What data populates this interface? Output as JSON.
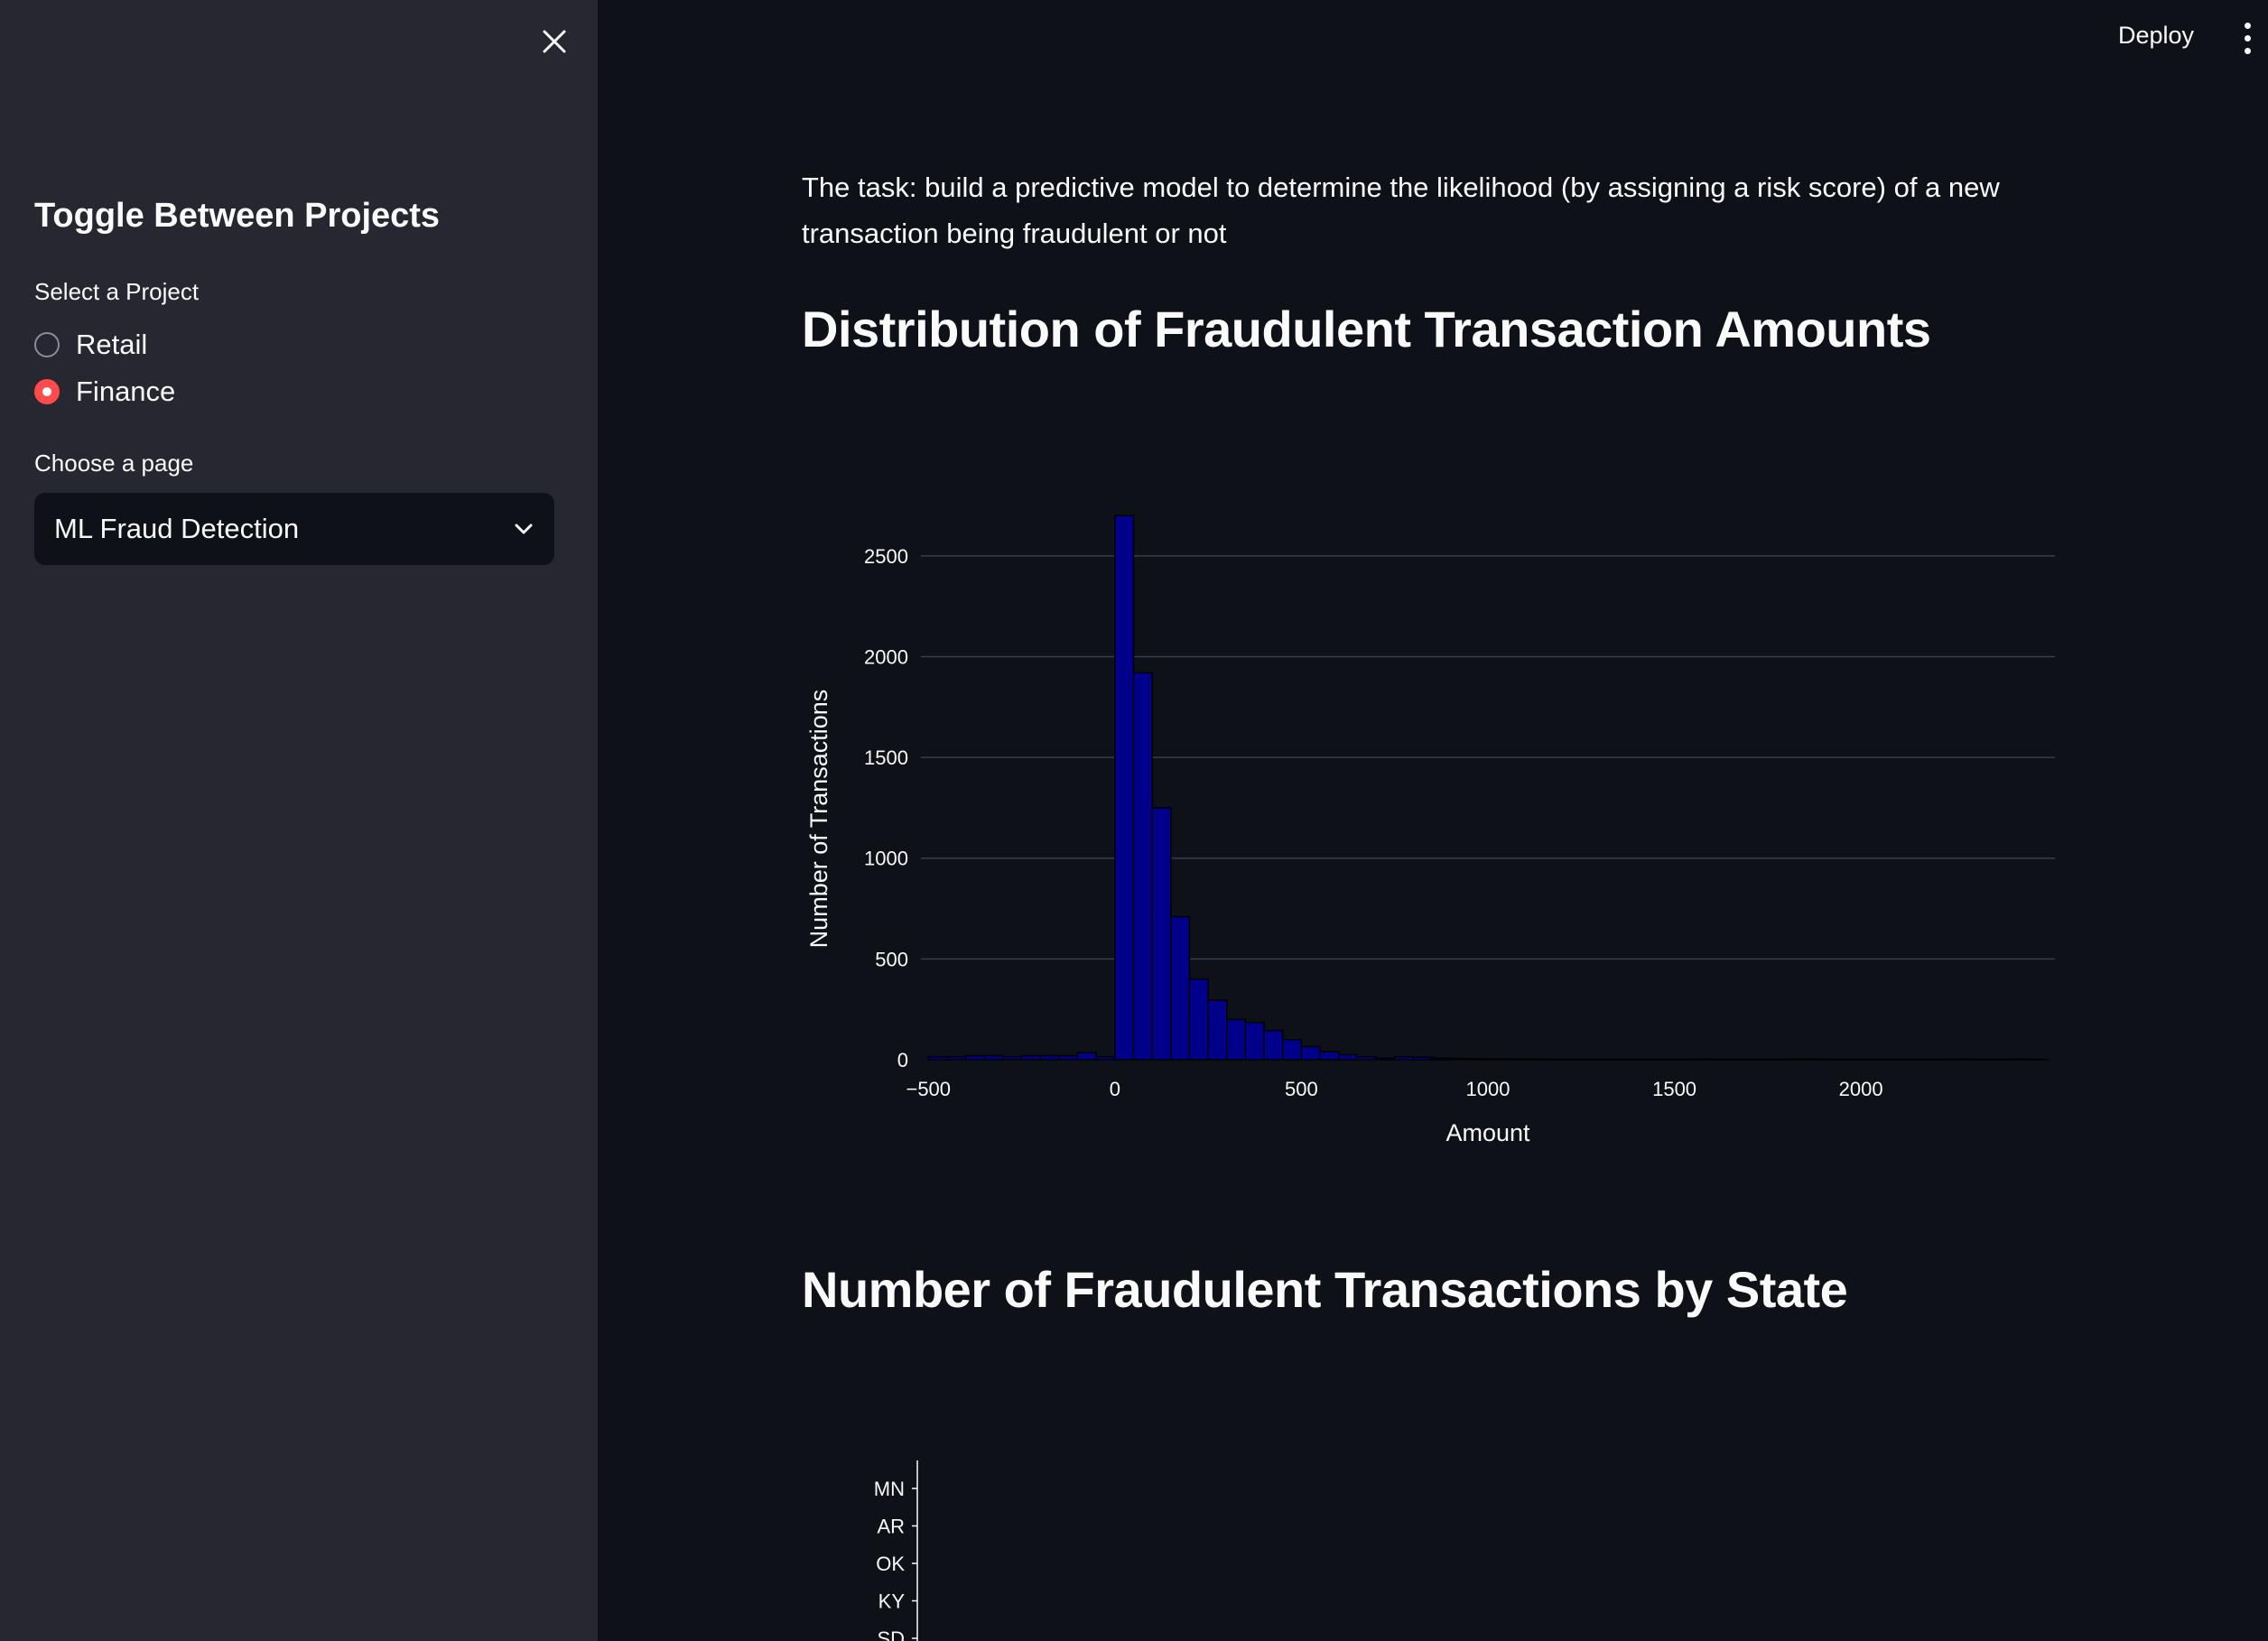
{
  "sidebar": {
    "title": "Toggle Between Projects",
    "project_label": "Select a Project",
    "projects": [
      {
        "label": "Retail",
        "checked": false
      },
      {
        "label": "Finance",
        "checked": true
      }
    ],
    "page_label": "Choose a page",
    "page_selected": "ML Fraud Detection"
  },
  "header": {
    "deploy_label": "Deploy"
  },
  "main": {
    "description": "The task: build a predictive model to determine the likelihood (by assigning a risk score) of a new transaction being fraudulent or not",
    "heading1": "Distribution of Fraudulent Transaction Amounts",
    "heading2": "Number of Fraudulent Transactions by State"
  },
  "colors": {
    "bar_fill": "#00008b",
    "bar_stroke": "#000000",
    "accent": "#ff4b4b"
  },
  "chart_data": [
    {
      "type": "bar",
      "title": "",
      "xlabel": "Amount",
      "ylabel": "Number of Transactions",
      "xlim": [
        -520,
        2520
      ],
      "ylim": [
        0,
        2750
      ],
      "x_ticks": [
        -500,
        0,
        500,
        1000,
        1500,
        2000
      ],
      "x_tick_labels": [
        "−500",
        "0",
        "500",
        "1000",
        "1500",
        "2000"
      ],
      "y_ticks": [
        0,
        500,
        1000,
        1500,
        2000,
        2500
      ],
      "grid": true,
      "bin_width": 50,
      "bins": [
        {
          "x0": -500,
          "value": 15
        },
        {
          "x0": -450,
          "value": 15
        },
        {
          "x0": -400,
          "value": 20
        },
        {
          "x0": -350,
          "value": 20
        },
        {
          "x0": -300,
          "value": 15
        },
        {
          "x0": -250,
          "value": 20
        },
        {
          "x0": -200,
          "value": 20
        },
        {
          "x0": -150,
          "value": 20
        },
        {
          "x0": -100,
          "value": 35
        },
        {
          "x0": -50,
          "value": 15
        },
        {
          "x0": 0,
          "value": 2700
        },
        {
          "x0": 50,
          "value": 1920
        },
        {
          "x0": 100,
          "value": 1250
        },
        {
          "x0": 150,
          "value": 710
        },
        {
          "x0": 200,
          "value": 400
        },
        {
          "x0": 250,
          "value": 295
        },
        {
          "x0": 300,
          "value": 200
        },
        {
          "x0": 350,
          "value": 185
        },
        {
          "x0": 400,
          "value": 145
        },
        {
          "x0": 450,
          "value": 100
        },
        {
          "x0": 500,
          "value": 65
        },
        {
          "x0": 550,
          "value": 40
        },
        {
          "x0": 600,
          "value": 25
        },
        {
          "x0": 650,
          "value": 15
        },
        {
          "x0": 700,
          "value": 8
        },
        {
          "x0": 750,
          "value": 15
        },
        {
          "x0": 800,
          "value": 12
        },
        {
          "x0": 850,
          "value": 8
        },
        {
          "x0": 900,
          "value": 6
        },
        {
          "x0": 950,
          "value": 5
        },
        {
          "x0": 1000,
          "value": 4
        },
        {
          "x0": 1050,
          "value": 3
        },
        {
          "x0": 1100,
          "value": 3
        },
        {
          "x0": 1150,
          "value": 2
        },
        {
          "x0": 1200,
          "value": 2
        },
        {
          "x0": 1250,
          "value": 2
        },
        {
          "x0": 1300,
          "value": 2
        },
        {
          "x0": 1350,
          "value": 2
        },
        {
          "x0": 1400,
          "value": 2
        },
        {
          "x0": 1450,
          "value": 2
        },
        {
          "x0": 1500,
          "value": 2
        },
        {
          "x0": 1550,
          "value": 3
        },
        {
          "x0": 1600,
          "value": 2
        },
        {
          "x0": 1650,
          "value": 2
        },
        {
          "x0": 1700,
          "value": 2
        },
        {
          "x0": 1750,
          "value": 2
        },
        {
          "x0": 1800,
          "value": 3
        },
        {
          "x0": 1850,
          "value": 3
        },
        {
          "x0": 1900,
          "value": 2
        },
        {
          "x0": 1950,
          "value": 2
        },
        {
          "x0": 2000,
          "value": 2
        },
        {
          "x0": 2050,
          "value": 2
        },
        {
          "x0": 2100,
          "value": 2
        },
        {
          "x0": 2150,
          "value": 2
        },
        {
          "x0": 2200,
          "value": 2
        },
        {
          "x0": 2250,
          "value": 3
        },
        {
          "x0": 2300,
          "value": 2
        },
        {
          "x0": 2350,
          "value": 2
        },
        {
          "x0": 2400,
          "value": 3
        },
        {
          "x0": 2450,
          "value": 2
        }
      ]
    },
    {
      "type": "bar",
      "orientation": "horizontal",
      "title": "",
      "categories": [
        "MN",
        "AR",
        "OK",
        "KY",
        "SD"
      ]
    }
  ]
}
